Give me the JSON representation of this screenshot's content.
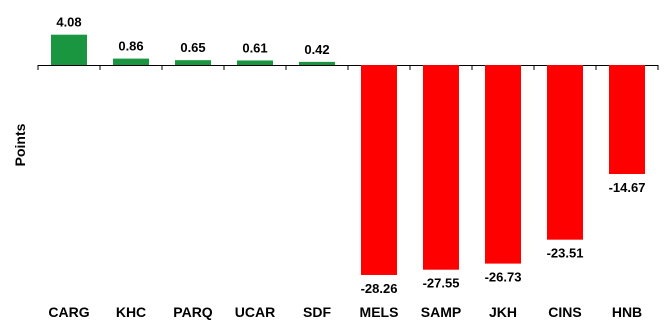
{
  "chart_data": {
    "type": "bar",
    "title": "",
    "xlabel": "",
    "ylabel": "Points",
    "categories": [
      "CARG",
      "KHC",
      "PARQ",
      "UCAR",
      "SDF",
      "MELS",
      "SAMP",
      "JKH",
      "CINS",
      "HNB"
    ],
    "values": [
      4.08,
      0.86,
      0.65,
      0.61,
      0.42,
      -28.26,
      -27.55,
      -26.73,
      -23.51,
      -14.67
    ],
    "value_labels": [
      "4.08",
      "0.86",
      "0.65",
      "0.61",
      "0.42",
      "-28.26",
      "-27.55",
      "-26.73",
      "-23.51",
      "-14.67"
    ],
    "ylim": [
      -28.26,
      4.08
    ],
    "grid": false,
    "legend": "none",
    "colors": {
      "positive": "#1a9641",
      "negative": "#ff0000",
      "axis": "#000000"
    }
  }
}
